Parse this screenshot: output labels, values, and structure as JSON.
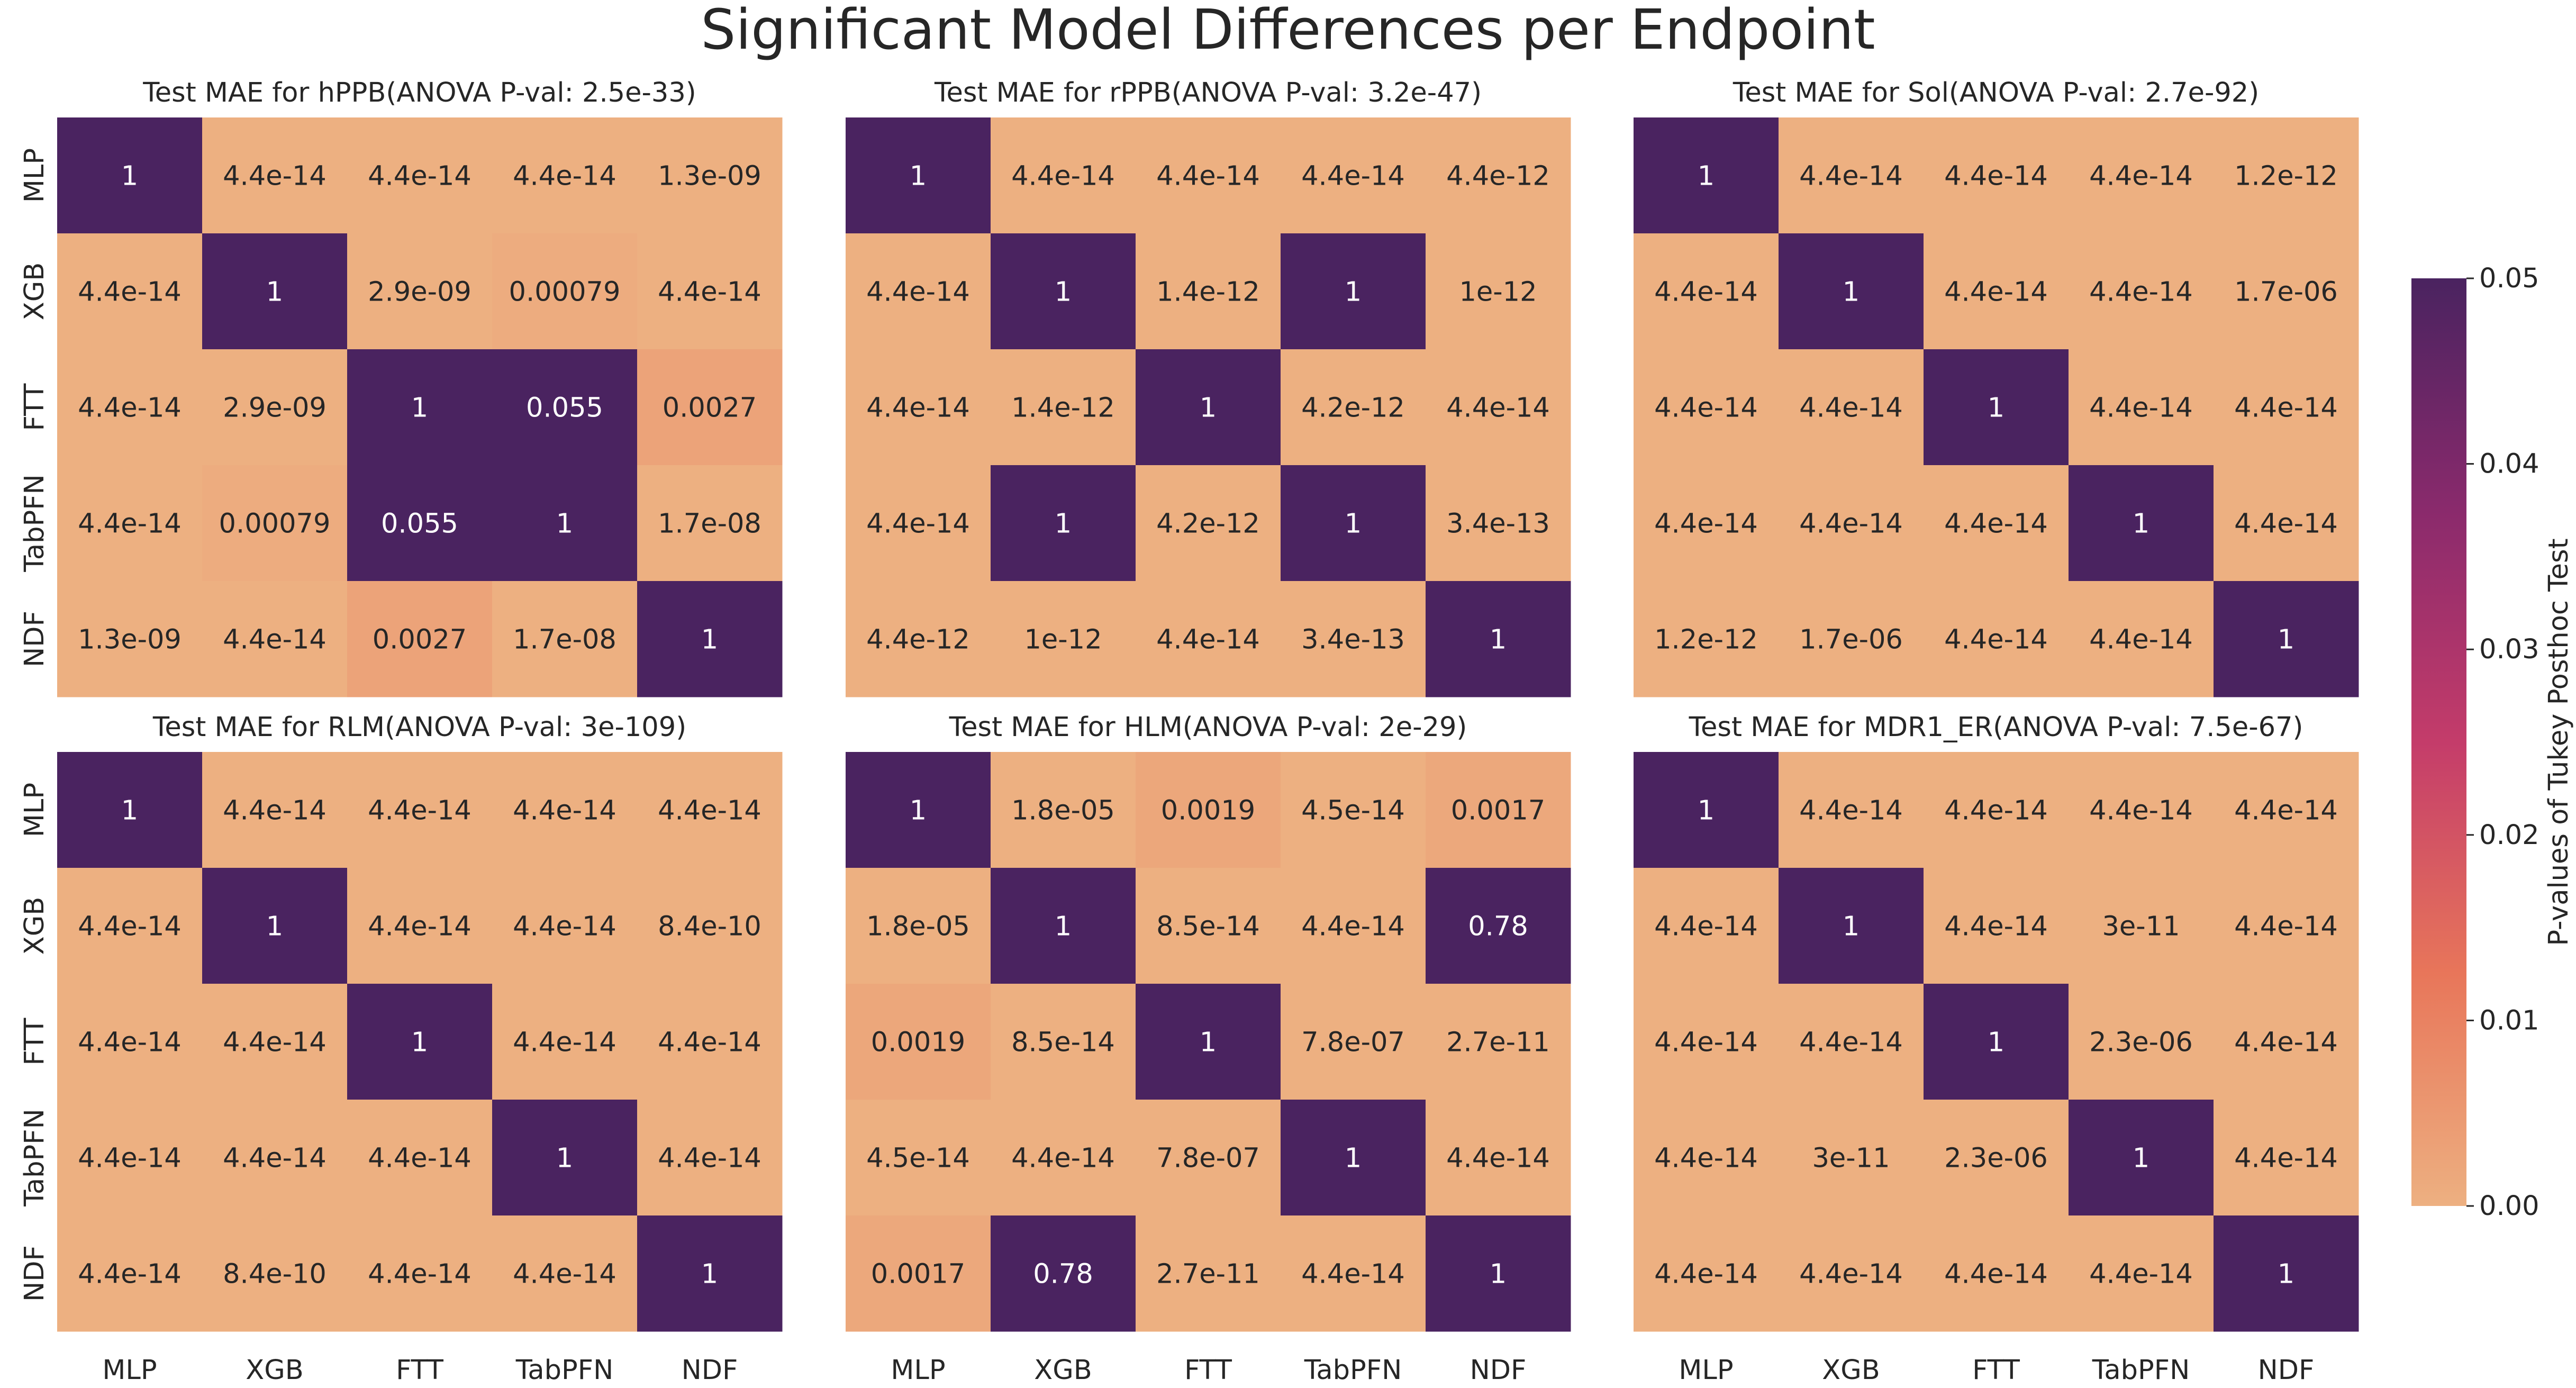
{
  "suptitle": "Significant Model Differences per Endpoint",
  "colorbar": {
    "label": "P-values of Tukey Posthoc Test",
    "min": 0.0,
    "max": 0.05,
    "ticks": [
      "0.00",
      "0.01",
      "0.02",
      "0.03",
      "0.04",
      "0.05"
    ],
    "colors": {
      "low": "#edb081",
      "mid_low": "#e8765a",
      "mid": "#c43c6a",
      "mid_high": "#8a2a6c",
      "high": "#4a2360"
    }
  },
  "chart_data": [
    {
      "type": "heatmap",
      "title": "Test MAE for hPPB(ANOVA P-val: 2.5e-33)",
      "x_labels": [
        "MLP",
        "XGB",
        "FTT",
        "TabPFN",
        "NDF"
      ],
      "y_labels": [
        "MLP",
        "XGB",
        "FTT",
        "TabPFN",
        "NDF"
      ],
      "values": [
        [
          1,
          4.4e-14,
          4.4e-14,
          4.4e-14,
          1.3e-09
        ],
        [
          4.4e-14,
          1,
          2.9e-09,
          0.00079,
          4.4e-14
        ],
        [
          4.4e-14,
          2.9e-09,
          1,
          0.055,
          0.0027
        ],
        [
          4.4e-14,
          0.00079,
          0.055,
          1,
          1.7e-08
        ],
        [
          1.3e-09,
          4.4e-14,
          0.0027,
          1.7e-08,
          1
        ]
      ],
      "annotations": [
        [
          "1",
          "4.4e-14",
          "4.4e-14",
          "4.4e-14",
          "1.3e-09"
        ],
        [
          "4.4e-14",
          "1",
          "2.9e-09",
          "0.00079",
          "4.4e-14"
        ],
        [
          "4.4e-14",
          "2.9e-09",
          "1",
          "0.055",
          "0.0027"
        ],
        [
          "4.4e-14",
          "0.00079",
          "0.055",
          "1",
          "1.7e-08"
        ],
        [
          "1.3e-09",
          "4.4e-14",
          "0.0027",
          "1.7e-08",
          "1"
        ]
      ]
    },
    {
      "type": "heatmap",
      "title": "Test MAE for rPPB(ANOVA P-val: 3.2e-47)",
      "x_labels": [
        "MLP",
        "XGB",
        "FTT",
        "TabPFN",
        "NDF"
      ],
      "y_labels": [
        "MLP",
        "XGB",
        "FTT",
        "TabPFN",
        "NDF"
      ],
      "values": [
        [
          1,
          4.4e-14,
          4.4e-14,
          4.4e-14,
          4.4e-12
        ],
        [
          4.4e-14,
          1,
          1.4e-12,
          1,
          1e-12
        ],
        [
          4.4e-14,
          1.4e-12,
          1,
          4.2e-12,
          4.4e-14
        ],
        [
          4.4e-14,
          1,
          4.2e-12,
          1,
          3.4e-13
        ],
        [
          4.4e-12,
          1e-12,
          4.4e-14,
          3.4e-13,
          1
        ]
      ],
      "annotations": [
        [
          "1",
          "4.4e-14",
          "4.4e-14",
          "4.4e-14",
          "4.4e-12"
        ],
        [
          "4.4e-14",
          "1",
          "1.4e-12",
          "1",
          "1e-12"
        ],
        [
          "4.4e-14",
          "1.4e-12",
          "1",
          "4.2e-12",
          "4.4e-14"
        ],
        [
          "4.4e-14",
          "1",
          "4.2e-12",
          "1",
          "3.4e-13"
        ],
        [
          "4.4e-12",
          "1e-12",
          "4.4e-14",
          "3.4e-13",
          "1"
        ]
      ]
    },
    {
      "type": "heatmap",
      "title": "Test MAE for Sol(ANOVA P-val: 2.7e-92)",
      "x_labels": [
        "MLP",
        "XGB",
        "FTT",
        "TabPFN",
        "NDF"
      ],
      "y_labels": [
        "MLP",
        "XGB",
        "FTT",
        "TabPFN",
        "NDF"
      ],
      "values": [
        [
          1,
          4.4e-14,
          4.4e-14,
          4.4e-14,
          1.2e-12
        ],
        [
          4.4e-14,
          1,
          4.4e-14,
          4.4e-14,
          1.7e-06
        ],
        [
          4.4e-14,
          4.4e-14,
          1,
          4.4e-14,
          4.4e-14
        ],
        [
          4.4e-14,
          4.4e-14,
          4.4e-14,
          1,
          4.4e-14
        ],
        [
          1.2e-12,
          1.7e-06,
          4.4e-14,
          4.4e-14,
          1
        ]
      ],
      "annotations": [
        [
          "1",
          "4.4e-14",
          "4.4e-14",
          "4.4e-14",
          "1.2e-12"
        ],
        [
          "4.4e-14",
          "1",
          "4.4e-14",
          "4.4e-14",
          "1.7e-06"
        ],
        [
          "4.4e-14",
          "4.4e-14",
          "1",
          "4.4e-14",
          "4.4e-14"
        ],
        [
          "4.4e-14",
          "4.4e-14",
          "4.4e-14",
          "1",
          "4.4e-14"
        ],
        [
          "1.2e-12",
          "1.7e-06",
          "4.4e-14",
          "4.4e-14",
          "1"
        ]
      ]
    },
    {
      "type": "heatmap",
      "title": "Test MAE for RLM(ANOVA P-val: 3e-109)",
      "x_labels": [
        "MLP",
        "XGB",
        "FTT",
        "TabPFN",
        "NDF"
      ],
      "y_labels": [
        "MLP",
        "XGB",
        "FTT",
        "TabPFN",
        "NDF"
      ],
      "values": [
        [
          1,
          4.4e-14,
          4.4e-14,
          4.4e-14,
          4.4e-14
        ],
        [
          4.4e-14,
          1,
          4.4e-14,
          4.4e-14,
          8.4e-10
        ],
        [
          4.4e-14,
          4.4e-14,
          1,
          4.4e-14,
          4.4e-14
        ],
        [
          4.4e-14,
          4.4e-14,
          4.4e-14,
          1,
          4.4e-14
        ],
        [
          4.4e-14,
          8.4e-10,
          4.4e-14,
          4.4e-14,
          1
        ]
      ],
      "annotations": [
        [
          "1",
          "4.4e-14",
          "4.4e-14",
          "4.4e-14",
          "4.4e-14"
        ],
        [
          "4.4e-14",
          "1",
          "4.4e-14",
          "4.4e-14",
          "8.4e-10"
        ],
        [
          "4.4e-14",
          "4.4e-14",
          "1",
          "4.4e-14",
          "4.4e-14"
        ],
        [
          "4.4e-14",
          "4.4e-14",
          "4.4e-14",
          "1",
          "4.4e-14"
        ],
        [
          "4.4e-14",
          "8.4e-10",
          "4.4e-14",
          "4.4e-14",
          "1"
        ]
      ]
    },
    {
      "type": "heatmap",
      "title": "Test MAE for HLM(ANOVA P-val: 2e-29)",
      "x_labels": [
        "MLP",
        "XGB",
        "FTT",
        "TabPFN",
        "NDF"
      ],
      "y_labels": [
        "MLP",
        "XGB",
        "FTT",
        "TabPFN",
        "NDF"
      ],
      "values": [
        [
          1,
          1.8e-05,
          0.0019,
          4.5e-14,
          0.0017
        ],
        [
          1.8e-05,
          1,
          8.5e-14,
          4.4e-14,
          0.78
        ],
        [
          0.0019,
          8.5e-14,
          1,
          7.8e-07,
          2.7e-11
        ],
        [
          4.5e-14,
          4.4e-14,
          7.8e-07,
          1,
          4.4e-14
        ],
        [
          0.0017,
          0.78,
          2.7e-11,
          4.4e-14,
          1
        ]
      ],
      "annotations": [
        [
          "1",
          "1.8e-05",
          "0.0019",
          "4.5e-14",
          "0.0017"
        ],
        [
          "1.8e-05",
          "1",
          "8.5e-14",
          "4.4e-14",
          "0.78"
        ],
        [
          "0.0019",
          "8.5e-14",
          "1",
          "7.8e-07",
          "2.7e-11"
        ],
        [
          "4.5e-14",
          "4.4e-14",
          "7.8e-07",
          "1",
          "4.4e-14"
        ],
        [
          "0.0017",
          "0.78",
          "2.7e-11",
          "4.4e-14",
          "1"
        ]
      ]
    },
    {
      "type": "heatmap",
      "title": "Test MAE for MDR1_ER(ANOVA P-val: 7.5e-67)",
      "x_labels": [
        "MLP",
        "XGB",
        "FTT",
        "TabPFN",
        "NDF"
      ],
      "y_labels": [
        "MLP",
        "XGB",
        "FTT",
        "TabPFN",
        "NDF"
      ],
      "values": [
        [
          1,
          4.4e-14,
          4.4e-14,
          4.4e-14,
          4.4e-14
        ],
        [
          4.4e-14,
          1,
          4.4e-14,
          3e-11,
          4.4e-14
        ],
        [
          4.4e-14,
          4.4e-14,
          1,
          2.3e-06,
          4.4e-14
        ],
        [
          4.4e-14,
          3e-11,
          2.3e-06,
          1,
          4.4e-14
        ],
        [
          4.4e-14,
          4.4e-14,
          4.4e-14,
          4.4e-14,
          1
        ]
      ],
      "annotations": [
        [
          "1",
          "4.4e-14",
          "4.4e-14",
          "4.4e-14",
          "4.4e-14"
        ],
        [
          "4.4e-14",
          "1",
          "4.4e-14",
          "3e-11",
          "4.4e-14"
        ],
        [
          "4.4e-14",
          "4.4e-14",
          "1",
          "2.3e-06",
          "4.4e-14"
        ],
        [
          "4.4e-14",
          "3e-11",
          "2.3e-06",
          "1",
          "4.4e-14"
        ],
        [
          "4.4e-14",
          "4.4e-14",
          "4.4e-14",
          "4.4e-14",
          "1"
        ]
      ]
    }
  ]
}
